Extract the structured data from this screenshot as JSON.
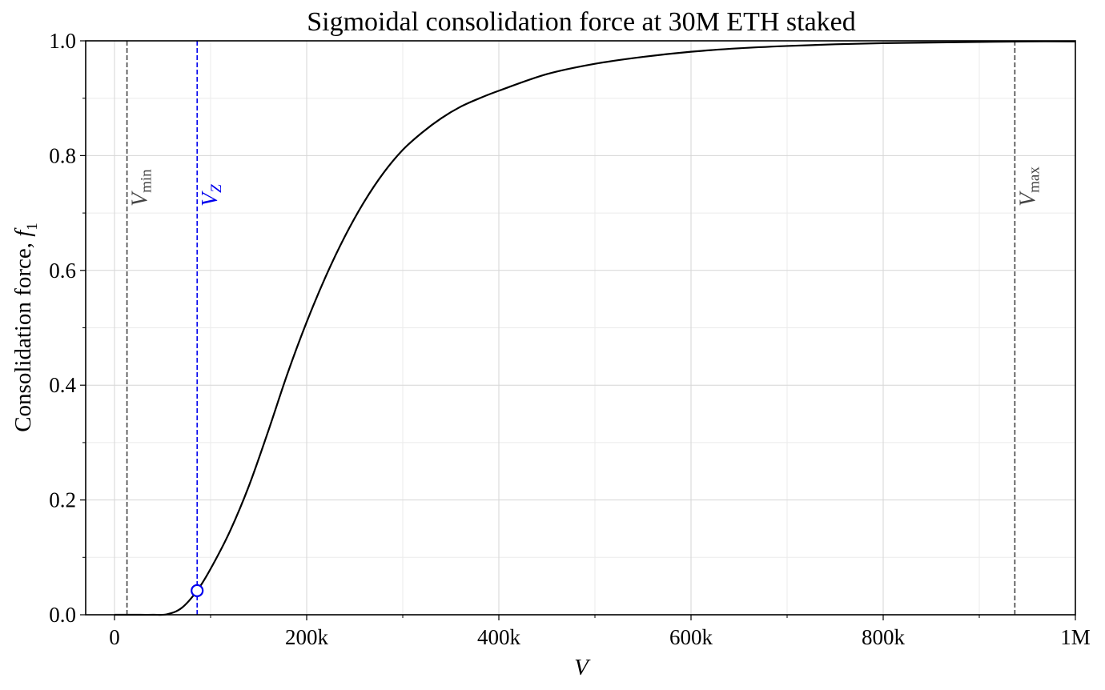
{
  "chart_data": {
    "type": "line",
    "title": "Sigmoidal consolidation force at 30M ETH staked",
    "xlabel": "V",
    "ylabel_text": "Consolidation force, ",
    "ylabel_symbol": "f",
    "ylabel_subscript": "1",
    "xlim": [
      -30000,
      1000000
    ],
    "ylim": [
      0,
      1
    ],
    "x_major_ticks": [
      0,
      200000,
      400000,
      600000,
      800000,
      1000000
    ],
    "x_tick_labels": [
      "0",
      "200k",
      "400k",
      "600k",
      "800k",
      "1M"
    ],
    "x_minor_ticks": [
      100000,
      300000,
      500000,
      700000,
      900000
    ],
    "y_major_ticks": [
      0,
      0.2,
      0.4,
      0.6,
      0.8,
      1.0
    ],
    "y_tick_labels": [
      "0.0",
      "0.2",
      "0.4",
      "0.6",
      "0.8",
      "1.0"
    ],
    "y_minor_ticks": [
      0.1,
      0.3,
      0.5,
      0.7,
      0.9
    ],
    "grid": true,
    "series": [
      {
        "color": "#000000",
        "x": [
          0,
          20000,
          40000,
          55000,
          70000,
          86000,
          100000,
          120000,
          140000,
          160000,
          180000,
          200000,
          220000,
          240000,
          260000,
          280000,
          300000,
          320000,
          340000,
          360000,
          380000,
          400000,
          450000,
          500000,
          550000,
          600000,
          650000,
          700000,
          750000,
          800000,
          850000,
          900000,
          950000,
          1000000
        ],
        "y": [
          0.0,
          0.0,
          0.0,
          0.001,
          0.012,
          0.042,
          0.08,
          0.145,
          0.225,
          0.32,
          0.42,
          0.51,
          0.59,
          0.66,
          0.72,
          0.77,
          0.81,
          0.84,
          0.865,
          0.885,
          0.9,
          0.913,
          0.942,
          0.96,
          0.972,
          0.981,
          0.987,
          0.991,
          0.994,
          0.996,
          0.997,
          0.998,
          0.999,
          0.999
        ]
      }
    ],
    "vlines": [
      {
        "x": 13000,
        "color": "#444444",
        "label_base": "V",
        "label_sub": "min"
      },
      {
        "x": 86000,
        "color": "#0000ee",
        "label_base": "V",
        "label_sub": "Z"
      },
      {
        "x": 937000,
        "color": "#444444",
        "label_base": "V",
        "label_sub": "max"
      }
    ],
    "marker": {
      "x": 86000,
      "y": 0.042,
      "color": "#0000ee"
    }
  }
}
